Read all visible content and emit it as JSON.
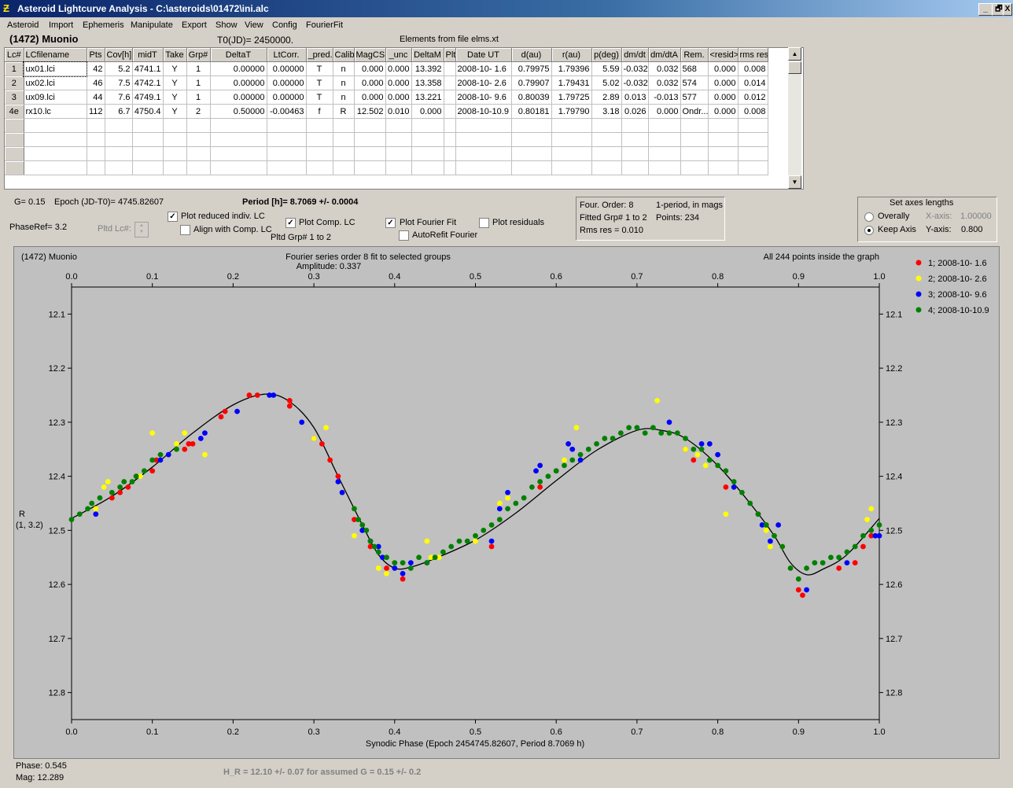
{
  "window": {
    "title": "Asteroid Lightcurve Analysis - C:\\asteroids\\01472\\ini.alc",
    "icon_name": "app-icon",
    "minimize_icon": "_",
    "restore_icon": "🗗",
    "close_icon": "X"
  },
  "menu": [
    "Asteroid",
    "Import",
    "Ephemeris",
    "Manipulate",
    "Export",
    "Show",
    "View",
    "Config",
    "FourierFit"
  ],
  "header": {
    "object": "(1472) Muonio",
    "t0": "T0(JD)= 2450000.",
    "elements": "Elements from file elms.xt"
  },
  "table": {
    "columns": [
      "Lc#",
      "LCfilename",
      "Pts",
      "Cov[h]",
      "midT",
      "Take",
      "Grp#",
      "DeltaT",
      "LtCorr.",
      "_pred.",
      "Calib",
      "MagCS",
      "_unc",
      "DeltaM",
      "Plt",
      "Date UT",
      "d(au)",
      "r(au)",
      "p(deg)",
      "dm/dt",
      "dm/dtA",
      "Rem.",
      "<resid>",
      "rms res"
    ],
    "rows": [
      [
        "1",
        "ux01.lci",
        "42",
        "5.2",
        "4741.1",
        "Y",
        "1",
        "0.00000",
        "0.00000",
        "T",
        "n",
        "0.000",
        "0.000",
        "13.392",
        "",
        "2008-10- 1.6",
        "0.79975",
        "1.79396",
        "5.59",
        "-0.032",
        "0.032",
        "568",
        "0.000",
        "0.008"
      ],
      [
        "2",
        "ux02.lci",
        "46",
        "7.5",
        "4742.1",
        "Y",
        "1",
        "0.00000",
        "0.00000",
        "T",
        "n",
        "0.000",
        "0.000",
        "13.358",
        "",
        "2008-10- 2.6",
        "0.79907",
        "1.79431",
        "5.02",
        "-0.032",
        "0.032",
        "574",
        "0.000",
        "0.014"
      ],
      [
        "3",
        "ux09.lci",
        "44",
        "7.6",
        "4749.1",
        "Y",
        "1",
        "0.00000",
        "0.00000",
        "T",
        "n",
        "0.000",
        "0.000",
        "13.221",
        "",
        "2008-10- 9.6",
        "0.80039",
        "1.79725",
        "2.89",
        "0.013",
        "-0.013",
        "577",
        "0.000",
        "0.012"
      ],
      [
        "4e",
        "rx10.lc",
        "112",
        "6.7",
        "4750.4",
        "Y",
        "2",
        "0.50000",
        "-0.00463",
        "f",
        "R",
        "12.502",
        "0.010",
        "0.000",
        "",
        "2008-10-10.9",
        "0.80181",
        "1.79790",
        "3.18",
        "0.026",
        "0.000",
        "Ondr...",
        "0.000",
        "0.008"
      ]
    ],
    "empty_rows": 4
  },
  "controls": {
    "g_label": "G= 0.15",
    "epoch_label": "Epoch (JD-T0)= 4745.82607",
    "period_label": "Period [h]= 8.7069 +/- 0.0004",
    "phaseref_label": "PhaseRef= 3.2",
    "pltd_lc_label": "Pltd Lc#:",
    "plot_reduced_label": "Plot reduced indiv. LC",
    "plot_reduced_checked": true,
    "align_comp_label": "Align with Comp. LC",
    "align_comp_checked": false,
    "plot_comp_label": "Plot Comp. LC",
    "plot_comp_checked": true,
    "pltd_grp_label": "Pltd Grp#  1   to   2",
    "plot_fourier_label": "Plot Fourier Fit",
    "plot_fourier_checked": true,
    "autorefit_label": "AutoRefit Fourier",
    "autorefit_checked": false,
    "plot_resid_label": "Plot residuals",
    "plot_resid_checked": false
  },
  "fourier_info": {
    "order": "Four. Order:  8",
    "period_mode": "1-period, in mags",
    "fitted": "Fitted Grp# 1 to 2",
    "points": "Points: 234",
    "rms": "Rms res     = 0.010"
  },
  "axes_box": {
    "title": "Set axes lengths",
    "overally_label": "Overally",
    "overally_checked": false,
    "keep_label": "Keep Axis",
    "keep_checked": true,
    "x_label": "X-axis:",
    "x_value": "1.00000",
    "y_label": "Y-axis:",
    "y_value": "0.800"
  },
  "plot_texts": {
    "top_left": "(1472) Muonio",
    "fit_title": "Fourier series order 8 fit to selected groups",
    "amplitude": "Amplitude: 0.337",
    "inside": "All 244 points inside the graph",
    "ylabel_line1": "R",
    "ylabel_line2": "(1, 3.2)",
    "xlabel": "Synodic Phase (Epoch 2454745.82607, Period 8.7069 h)"
  },
  "footer": {
    "phase": "Phase:  0.545",
    "mag": "Mag:    12.289",
    "h_r": "H_R = 12.10 +/- 0.07 for assumed G = 0.15 +/- 0.2"
  },
  "chart_data": {
    "type": "scatter",
    "x_ticks": [
      "0.0",
      "0.1",
      "0.2",
      "0.3",
      "0.4",
      "0.5",
      "0.6",
      "0.7",
      "0.8",
      "0.9",
      "1.0"
    ],
    "y_ticks": [
      "12.1",
      "12.2",
      "12.3",
      "12.4",
      "12.5",
      "12.6",
      "12.7",
      "12.8"
    ],
    "xlim": [
      0.0,
      1.0
    ],
    "ylim": [
      12.05,
      12.85
    ],
    "y_inverted": true,
    "series": [
      {
        "name": "1; 2008-10- 1.6",
        "color": "#ff0000",
        "points": [
          [
            0.05,
            12.44
          ],
          [
            0.06,
            12.43
          ],
          [
            0.07,
            12.42
          ],
          [
            0.08,
            12.4
          ],
          [
            0.1,
            12.39
          ],
          [
            0.105,
            12.37
          ],
          [
            0.14,
            12.35
          ],
          [
            0.145,
            12.34
          ],
          [
            0.15,
            12.34
          ],
          [
            0.185,
            12.29
          ],
          [
            0.19,
            12.28
          ],
          [
            0.22,
            12.25
          ],
          [
            0.23,
            12.25
          ],
          [
            0.27,
            12.26
          ],
          [
            0.27,
            12.27
          ],
          [
            0.3,
            12.33
          ],
          [
            0.31,
            12.34
          ],
          [
            0.32,
            12.37
          ],
          [
            0.33,
            12.4
          ],
          [
            0.35,
            12.48
          ],
          [
            0.36,
            12.5
          ],
          [
            0.37,
            12.53
          ],
          [
            0.39,
            12.57
          ],
          [
            0.41,
            12.59
          ],
          [
            0.52,
            12.53
          ],
          [
            0.58,
            12.42
          ],
          [
            0.6,
            12.39
          ],
          [
            0.76,
            12.35
          ],
          [
            0.77,
            12.37
          ],
          [
            0.81,
            12.42
          ],
          [
            0.82,
            12.42
          ],
          [
            0.85,
            12.47
          ],
          [
            0.86,
            12.49
          ],
          [
            0.905,
            12.62
          ],
          [
            0.9,
            12.61
          ],
          [
            0.95,
            12.57
          ],
          [
            0.97,
            12.56
          ],
          [
            0.98,
            12.53
          ],
          [
            0.99,
            12.51
          ]
        ]
      },
      {
        "name": "2; 2008-10- 2.6",
        "color": "#ffff00",
        "points": [
          [
            0.03,
            12.46
          ],
          [
            0.04,
            12.42
          ],
          [
            0.045,
            12.41
          ],
          [
            0.1,
            12.32
          ],
          [
            0.085,
            12.4
          ],
          [
            0.13,
            12.34
          ],
          [
            0.14,
            12.32
          ],
          [
            0.165,
            12.36
          ],
          [
            0.3,
            12.33
          ],
          [
            0.315,
            12.31
          ],
          [
            0.35,
            12.51
          ],
          [
            0.38,
            12.57
          ],
          [
            0.39,
            12.58
          ],
          [
            0.44,
            12.52
          ],
          [
            0.445,
            12.55
          ],
          [
            0.455,
            12.55
          ],
          [
            0.5,
            12.52
          ],
          [
            0.53,
            12.45
          ],
          [
            0.54,
            12.44
          ],
          [
            0.61,
            12.37
          ],
          [
            0.625,
            12.31
          ],
          [
            0.725,
            12.26
          ],
          [
            0.76,
            12.35
          ],
          [
            0.775,
            12.36
          ],
          [
            0.785,
            12.38
          ],
          [
            0.81,
            12.47
          ],
          [
            0.82,
            12.42
          ],
          [
            0.86,
            12.5
          ],
          [
            0.865,
            12.53
          ],
          [
            0.88,
            12.53
          ],
          [
            0.985,
            12.48
          ],
          [
            0.99,
            12.46
          ]
        ]
      },
      {
        "name": "3; 2008-10- 9.6",
        "color": "#0000ff",
        "points": [
          [
            0.03,
            12.47
          ],
          [
            0.11,
            12.37
          ],
          [
            0.12,
            12.36
          ],
          [
            0.16,
            12.33
          ],
          [
            0.165,
            12.32
          ],
          [
            0.205,
            12.28
          ],
          [
            0.245,
            12.25
          ],
          [
            0.25,
            12.25
          ],
          [
            0.285,
            12.3
          ],
          [
            0.33,
            12.41
          ],
          [
            0.335,
            12.43
          ],
          [
            0.36,
            12.5
          ],
          [
            0.37,
            12.52
          ],
          [
            0.38,
            12.53
          ],
          [
            0.385,
            12.55
          ],
          [
            0.4,
            12.57
          ],
          [
            0.41,
            12.58
          ],
          [
            0.42,
            12.56
          ],
          [
            0.44,
            12.56
          ],
          [
            0.52,
            12.52
          ],
          [
            0.53,
            12.46
          ],
          [
            0.54,
            12.43
          ],
          [
            0.575,
            12.39
          ],
          [
            0.58,
            12.38
          ],
          [
            0.615,
            12.34
          ],
          [
            0.62,
            12.35
          ],
          [
            0.63,
            12.37
          ],
          [
            0.74,
            12.3
          ],
          [
            0.78,
            12.34
          ],
          [
            0.79,
            12.34
          ],
          [
            0.8,
            12.36
          ],
          [
            0.82,
            12.42
          ],
          [
            0.855,
            12.49
          ],
          [
            0.865,
            12.52
          ],
          [
            0.875,
            12.49
          ],
          [
            0.91,
            12.61
          ],
          [
            0.96,
            12.56
          ],
          [
            1.0,
            12.51
          ],
          [
            0.995,
            12.51
          ]
        ]
      },
      {
        "name": "4; 2008-10-10.9",
        "color": "#008000",
        "points": [
          [
            0.0,
            12.48
          ],
          [
            0.01,
            12.47
          ],
          [
            0.02,
            12.46
          ],
          [
            0.025,
            12.45
          ],
          [
            0.035,
            12.44
          ],
          [
            0.05,
            12.43
          ],
          [
            0.06,
            12.42
          ],
          [
            0.065,
            12.41
          ],
          [
            0.075,
            12.41
          ],
          [
            0.08,
            12.4
          ],
          [
            0.09,
            12.39
          ],
          [
            0.1,
            12.37
          ],
          [
            0.11,
            12.36
          ],
          [
            0.13,
            12.35
          ],
          [
            0.35,
            12.46
          ],
          [
            0.355,
            12.48
          ],
          [
            0.36,
            12.49
          ],
          [
            0.365,
            12.5
          ],
          [
            0.37,
            12.52
          ],
          [
            0.375,
            12.53
          ],
          [
            0.38,
            12.54
          ],
          [
            0.39,
            12.55
          ],
          [
            0.4,
            12.56
          ],
          [
            0.41,
            12.56
          ],
          [
            0.42,
            12.57
          ],
          [
            0.43,
            12.55
          ],
          [
            0.44,
            12.56
          ],
          [
            0.45,
            12.55
          ],
          [
            0.46,
            12.54
          ],
          [
            0.47,
            12.53
          ],
          [
            0.48,
            12.52
          ],
          [
            0.49,
            12.52
          ],
          [
            0.5,
            12.51
          ],
          [
            0.51,
            12.5
          ],
          [
            0.52,
            12.49
          ],
          [
            0.53,
            12.48
          ],
          [
            0.54,
            12.46
          ],
          [
            0.55,
            12.45
          ],
          [
            0.56,
            12.44
          ],
          [
            0.57,
            12.42
          ],
          [
            0.58,
            12.41
          ],
          [
            0.59,
            12.4
          ],
          [
            0.6,
            12.39
          ],
          [
            0.61,
            12.38
          ],
          [
            0.62,
            12.37
          ],
          [
            0.63,
            12.36
          ],
          [
            0.64,
            12.35
          ],
          [
            0.65,
            12.34
          ],
          [
            0.66,
            12.33
          ],
          [
            0.67,
            12.33
          ],
          [
            0.68,
            12.32
          ],
          [
            0.69,
            12.31
          ],
          [
            0.7,
            12.31
          ],
          [
            0.71,
            12.32
          ],
          [
            0.72,
            12.31
          ],
          [
            0.73,
            12.32
          ],
          [
            0.74,
            12.32
          ],
          [
            0.75,
            12.32
          ],
          [
            0.76,
            12.33
          ],
          [
            0.77,
            12.35
          ],
          [
            0.78,
            12.35
          ],
          [
            0.79,
            12.37
          ],
          [
            0.8,
            12.38
          ],
          [
            0.81,
            12.39
          ],
          [
            0.82,
            12.41
          ],
          [
            0.83,
            12.43
          ],
          [
            0.84,
            12.45
          ],
          [
            0.85,
            12.47
          ],
          [
            0.86,
            12.49
          ],
          [
            0.87,
            12.51
          ],
          [
            0.88,
            12.53
          ],
          [
            0.89,
            12.57
          ],
          [
            0.9,
            12.59
          ],
          [
            0.91,
            12.57
          ],
          [
            0.92,
            12.56
          ],
          [
            0.93,
            12.56
          ],
          [
            0.94,
            12.55
          ],
          [
            0.95,
            12.55
          ],
          [
            0.96,
            12.54
          ],
          [
            0.97,
            12.53
          ],
          [
            0.98,
            12.51
          ],
          [
            0.99,
            12.5
          ],
          [
            1.0,
            12.49
          ]
        ]
      }
    ],
    "fit_curve": [
      [
        0.0,
        12.478
      ],
      [
        0.05,
        12.437
      ],
      [
        0.1,
        12.383
      ],
      [
        0.15,
        12.32
      ],
      [
        0.2,
        12.268
      ],
      [
        0.24,
        12.248
      ],
      [
        0.27,
        12.262
      ],
      [
        0.3,
        12.31
      ],
      [
        0.33,
        12.4
      ],
      [
        0.36,
        12.49
      ],
      [
        0.38,
        12.545
      ],
      [
        0.4,
        12.57
      ],
      [
        0.42,
        12.568
      ],
      [
        0.45,
        12.552
      ],
      [
        0.5,
        12.518
      ],
      [
        0.55,
        12.468
      ],
      [
        0.6,
        12.408
      ],
      [
        0.65,
        12.352
      ],
      [
        0.7,
        12.315
      ],
      [
        0.73,
        12.315
      ],
      [
        0.76,
        12.33
      ],
      [
        0.8,
        12.38
      ],
      [
        0.84,
        12.45
      ],
      [
        0.87,
        12.51
      ],
      [
        0.89,
        12.56
      ],
      [
        0.91,
        12.582
      ],
      [
        0.93,
        12.572
      ],
      [
        0.96,
        12.545
      ],
      [
        1.0,
        12.478
      ]
    ]
  }
}
